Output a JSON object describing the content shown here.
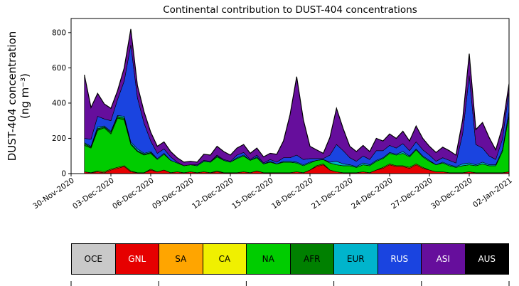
{
  "title": "Continental contribution to DUST-404 concentrations",
  "y_axis": {
    "label_line1": "DUST-404 concentration",
    "label_line2": "(ng m⁻³)",
    "ticks": [
      0,
      200,
      400,
      600,
      800
    ]
  },
  "x_axis": {
    "domain": [
      0,
      33
    ],
    "ticks": [
      {
        "d": 0,
        "label": "30-Nov-2020"
      },
      {
        "d": 3,
        "label": "03-Dec-2020"
      },
      {
        "d": 6,
        "label": "06-Dec-2020"
      },
      {
        "d": 9,
        "label": "09-Dec-2020"
      },
      {
        "d": 12,
        "label": "12-Dec-2020"
      },
      {
        "d": 15,
        "label": "15-Dec-2020"
      },
      {
        "d": 18,
        "label": "18-Dec-2020"
      },
      {
        "d": 21,
        "label": "21-Dec-2020"
      },
      {
        "d": 24,
        "label": "24-Dec-2020"
      },
      {
        "d": 27,
        "label": "27-Dec-2020"
      },
      {
        "d": 30,
        "label": "30-Dec-2020"
      },
      {
        "d": 33,
        "label": "02-Jan-2021"
      }
    ]
  },
  "legend": {
    "items": [
      {
        "label": "OCE",
        "color": "#c9c9c9",
        "text": "#000000"
      },
      {
        "label": "GNL",
        "color": "#e60000",
        "text": "#ffffff"
      },
      {
        "label": "SA",
        "color": "#ffa500",
        "text": "#000000"
      },
      {
        "label": "CA",
        "color": "#f0f000",
        "text": "#000000"
      },
      {
        "label": "NA",
        "color": "#00cc00",
        "text": "#000000"
      },
      {
        "label": "AFR",
        "color": "#008000",
        "text": "#000000"
      },
      {
        "label": "EUR",
        "color": "#00b4cc",
        "text": "#000000"
      },
      {
        "label": "RUS",
        "color": "#1a44e0",
        "text": "#ffffff"
      },
      {
        "label": "ASI",
        "color": "#660e9c",
        "text": "#ffffff"
      },
      {
        "label": "AUS",
        "color": "#000000",
        "text": "#ffffff"
      }
    ]
  },
  "chart_data": {
    "type": "area",
    "stacked": true,
    "title": "Continental contribution to DUST-404 concentrations",
    "xlabel": "",
    "ylabel": "DUST-404 concentration (ng m⁻³)",
    "ylim": [
      0,
      880
    ],
    "grid": false,
    "legend_position": "bottom",
    "x_unit": "days since 30-Nov-2020",
    "x": [
      1,
      1.5,
      2,
      2.5,
      3,
      3.5,
      4,
      4.5,
      5,
      5.5,
      6,
      6.5,
      7,
      7.5,
      8,
      8.5,
      9,
      9.5,
      10,
      10.5,
      11,
      11.5,
      12,
      12.5,
      13,
      13.5,
      14,
      14.5,
      15,
      15.5,
      16,
      16.5,
      17,
      17.5,
      18,
      18.5,
      19,
      19.5,
      20,
      20.5,
      21,
      21.5,
      22,
      22.5,
      23,
      23.5,
      24,
      24.5,
      25,
      25.5,
      26,
      26.5,
      27,
      27.5,
      28,
      28.5,
      29,
      29.5,
      30,
      30.5,
      31,
      31.5,
      32,
      32.5,
      33
    ],
    "series": [
      {
        "name": "OCE",
        "color": "#c9c9c9",
        "values": [
          0,
          0,
          0,
          0,
          0,
          0,
          0,
          0,
          0,
          0,
          0,
          0,
          0,
          0,
          0,
          0,
          0,
          0,
          0,
          0,
          0,
          0,
          0,
          0,
          0,
          0,
          0,
          0,
          0,
          0,
          0,
          0,
          0,
          0,
          0,
          0,
          0,
          0,
          0,
          0,
          0,
          0,
          0,
          0,
          0,
          0,
          0,
          0,
          0,
          0,
          0,
          0,
          0,
          0,
          0,
          0,
          0,
          0,
          0,
          0,
          0,
          0,
          0,
          0,
          0
        ]
      },
      {
        "name": "GNL",
        "color": "#e60000",
        "values": [
          10,
          5,
          10,
          5,
          20,
          30,
          40,
          10,
          5,
          5,
          20,
          10,
          20,
          5,
          10,
          5,
          10,
          5,
          10,
          5,
          10,
          5,
          5,
          5,
          10,
          5,
          15,
          5,
          5,
          5,
          5,
          5,
          10,
          5,
          20,
          40,
          50,
          20,
          10,
          5,
          5,
          5,
          10,
          5,
          20,
          30,
          50,
          40,
          40,
          30,
          50,
          30,
          20,
          10,
          10,
          5,
          5,
          5,
          10,
          5,
          5,
          5,
          5,
          5,
          10
        ]
      },
      {
        "name": "SA",
        "color": "#ffa500",
        "values": [
          0,
          0,
          5,
          5,
          5,
          5,
          5,
          5,
          0,
          0,
          5,
          0,
          0,
          0,
          0,
          0,
          0,
          0,
          0,
          0,
          5,
          0,
          0,
          0,
          0,
          0,
          0,
          0,
          0,
          0,
          0,
          0,
          0,
          0,
          0,
          5,
          5,
          0,
          0,
          0,
          0,
          0,
          0,
          0,
          0,
          5,
          5,
          5,
          5,
          5,
          5,
          5,
          0,
          0,
          0,
          0,
          0,
          0,
          0,
          0,
          0,
          0,
          0,
          0,
          0
        ]
      },
      {
        "name": "CA",
        "color": "#f0f000",
        "values": [
          0,
          0,
          0,
          0,
          0,
          0,
          0,
          0,
          0,
          0,
          0,
          0,
          0,
          0,
          0,
          0,
          0,
          0,
          0,
          0,
          0,
          0,
          0,
          0,
          0,
          0,
          0,
          0,
          0,
          0,
          0,
          0,
          0,
          0,
          0,
          0,
          0,
          0,
          0,
          0,
          0,
          0,
          0,
          0,
          0,
          0,
          0,
          0,
          0,
          0,
          0,
          0,
          0,
          0,
          0,
          0,
          0,
          0,
          0,
          0,
          0,
          0,
          0,
          0,
          0
        ]
      },
      {
        "name": "NA",
        "color": "#00cc00",
        "values": [
          150,
          140,
          230,
          250,
          200,
          280,
          260,
          150,
          120,
          100,
          90,
          70,
          90,
          70,
          50,
          40,
          40,
          40,
          60,
          60,
          80,
          70,
          60,
          80,
          90,
          70,
          75,
          50,
          60,
          50,
          60,
          60,
          50,
          40,
          40,
          30,
          25,
          40,
          40,
          40,
          40,
          30,
          40,
          40,
          50,
          50,
          60,
          60,
          70,
          60,
          80,
          60,
          50,
          40,
          50,
          40,
          30,
          40,
          40,
          40,
          50,
          40,
          40,
          120,
          320
        ]
      },
      {
        "name": "AFR",
        "color": "#008000",
        "values": [
          10,
          5,
          10,
          5,
          10,
          10,
          10,
          5,
          5,
          5,
          5,
          0,
          0,
          0,
          0,
          0,
          0,
          0,
          0,
          0,
          0,
          0,
          0,
          0,
          0,
          0,
          0,
          0,
          0,
          0,
          0,
          0,
          0,
          0,
          0,
          0,
          0,
          0,
          0,
          0,
          0,
          0,
          0,
          0,
          0,
          0,
          0,
          0,
          0,
          0,
          0,
          0,
          0,
          0,
          0,
          0,
          0,
          0,
          0,
          0,
          0,
          0,
          0,
          0,
          5
        ]
      },
      {
        "name": "EUR",
        "color": "#00b4cc",
        "values": [
          5,
          5,
          10,
          5,
          5,
          5,
          10,
          10,
          10,
          5,
          5,
          5,
          5,
          0,
          0,
          0,
          0,
          0,
          0,
          0,
          5,
          0,
          0,
          5,
          5,
          0,
          5,
          0,
          5,
          0,
          5,
          5,
          5,
          5,
          5,
          0,
          0,
          5,
          20,
          10,
          5,
          5,
          10,
          5,
          5,
          5,
          5,
          5,
          10,
          5,
          5,
          5,
          5,
          0,
          5,
          5,
          5,
          10,
          10,
          5,
          10,
          5,
          5,
          10,
          20
        ]
      },
      {
        "name": "RUS",
        "color": "#1a44e0",
        "values": [
          25,
          40,
          60,
          40,
          60,
          90,
          200,
          550,
          290,
          170,
          60,
          30,
          25,
          20,
          5,
          0,
          0,
          5,
          5,
          5,
          5,
          5,
          5,
          15,
          15,
          5,
          10,
          5,
          10,
          10,
          20,
          20,
          40,
          30,
          20,
          10,
          5,
          40,
          95,
          75,
          40,
          30,
          40,
          30,
          55,
          40,
          40,
          35,
          45,
          30,
          40,
          35,
          30,
          20,
          25,
          25,
          20,
          170,
          495,
          115,
          80,
          50,
          30,
          60,
          115
        ]
      },
      {
        "name": "ASI",
        "color": "#660e9c",
        "values": [
          360,
          180,
          130,
          85,
          70,
          50,
          75,
          90,
          70,
          65,
          50,
          40,
          40,
          30,
          25,
          20,
          20,
          15,
          35,
          35,
          50,
          45,
          35,
          40,
          45,
          35,
          40,
          35,
          35,
          45,
          95,
          245,
          445,
          225,
          70,
          50,
          30,
          100,
          205,
          125,
          65,
          55,
          60,
          45,
          70,
          55,
          65,
          55,
          70,
          55,
          90,
          65,
          50,
          50,
          60,
          55,
          45,
          80,
          125,
          85,
          145,
          105,
          55,
          70,
          40
        ]
      },
      {
        "name": "AUS",
        "color": "#000000",
        "values": [
          0,
          0,
          0,
          0,
          0,
          0,
          0,
          0,
          0,
          0,
          0,
          0,
          0,
          0,
          0,
          0,
          0,
          0,
          0,
          0,
          0,
          0,
          0,
          0,
          0,
          0,
          0,
          0,
          0,
          0,
          0,
          0,
          0,
          0,
          0,
          0,
          0,
          0,
          0,
          0,
          0,
          0,
          0,
          0,
          0,
          0,
          0,
          0,
          0,
          0,
          0,
          0,
          0,
          0,
          0,
          0,
          0,
          0,
          0,
          0,
          0,
          0,
          0,
          0,
          0
        ]
      }
    ]
  }
}
